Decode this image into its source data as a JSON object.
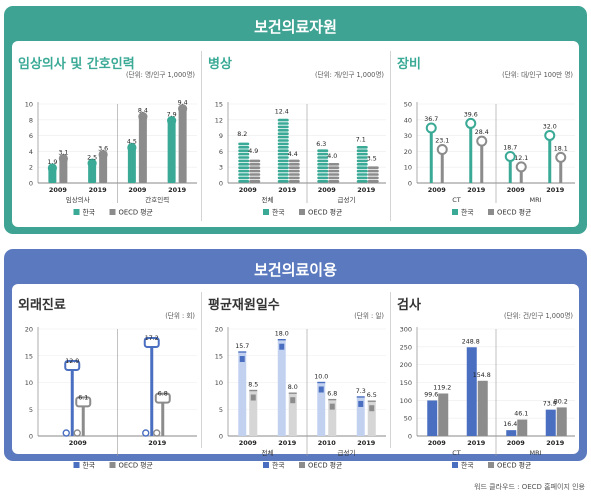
{
  "colors": {
    "korea": "#3aaa96",
    "korea_light": "#a8ddd3",
    "korea_blue": "#4a6fc0",
    "korea_blue_light": "#c3d1f0",
    "oecd": "#8c8c8c",
    "oecd_light": "#d6d6d6",
    "green_frame": "#3ea393",
    "blue_frame": "#5b79be"
  },
  "sections": {
    "resources": {
      "title": "보건의료자원"
    },
    "utilization": {
      "title": "보건의료이용"
    }
  },
  "footer": {
    "credit": "워드 클라우드 : OECD 홈페이지 인용"
  },
  "chart_data": [
    {
      "id": "doctors",
      "type": "bar",
      "title": "임상의사 및 간호인력",
      "unit": "(단위: 명/인구 1,000명)",
      "yticks": [
        "0",
        "2",
        "4",
        "6",
        "8",
        "10"
      ],
      "ylim": [
        0,
        10
      ],
      "groups": [
        {
          "label": "임상의사",
          "years": [
            "2009",
            "2019"
          ]
        },
        {
          "label": "간호인력",
          "years": [
            "2009",
            "2019"
          ]
        }
      ],
      "series": [
        {
          "name": "한국",
          "values": [
            1.9,
            2.5,
            4.5,
            7.9
          ]
        },
        {
          "name": "OECD 평균",
          "values": [
            3.1,
            3.6,
            8.4,
            9.4
          ]
        }
      ],
      "value_labels": [
        [
          "1.9",
          "2.5",
          "4.5",
          "7.9"
        ],
        [
          "3.1",
          "3.6",
          "8.4",
          "9.4"
        ]
      ],
      "legend": [
        "한국",
        "OECD 평균"
      ]
    },
    {
      "id": "beds",
      "type": "bar",
      "title": "병상",
      "unit": "(단위: 개/인구 1,000명)",
      "yticks": [
        "0",
        "3",
        "6",
        "9",
        "12",
        "15"
      ],
      "ylim": [
        0,
        15
      ],
      "groups": [
        {
          "label": "전체",
          "years": [
            "2009",
            "2019"
          ]
        },
        {
          "label": "급성기",
          "years": [
            "2009",
            "2019"
          ]
        }
      ],
      "series": [
        {
          "name": "한국",
          "values": [
            8.2,
            12.4,
            6.3,
            7.1
          ]
        },
        {
          "name": "OECD 평균",
          "values": [
            4.9,
            4.4,
            4.0,
            3.5
          ]
        }
      ],
      "value_labels": [
        [
          "8.2",
          "12.4",
          "6.3",
          "7.1"
        ],
        [
          "4.9",
          "4.4",
          "4.0",
          "3.5"
        ]
      ],
      "legend": [
        "한국",
        "OECD 평균"
      ]
    },
    {
      "id": "equipment",
      "type": "bar",
      "title": "장비",
      "unit": "(단위: 대/인구 100만 명)",
      "yticks": [
        "0",
        "10",
        "20",
        "30",
        "40",
        "50"
      ],
      "ylim": [
        0,
        50
      ],
      "groups": [
        {
          "label": "CT",
          "years": [
            "2009",
            "2019"
          ]
        },
        {
          "label": "MRI",
          "years": [
            "2009",
            "2019"
          ]
        }
      ],
      "series": [
        {
          "name": "한국",
          "values": [
            36.7,
            39.6,
            18.7,
            32.0
          ]
        },
        {
          "name": "OECD 평균",
          "values": [
            23.1,
            28.4,
            12.1,
            18.1
          ]
        }
      ],
      "value_labels": [
        [
          "36.7",
          "39.6",
          "18.7",
          "32.0"
        ],
        [
          "23.1",
          "28.4",
          "12.1",
          "18.1"
        ]
      ],
      "legend": [
        "한국",
        "OECD 평균"
      ]
    },
    {
      "id": "outpatient",
      "type": "bar",
      "title": "외래진료",
      "unit": "(단위 : 회)",
      "yticks": [
        "0",
        "5",
        "10",
        "15",
        "20"
      ],
      "ylim": [
        0,
        20
      ],
      "groups": [
        {
          "label": "",
          "years": [
            "2009"
          ]
        },
        {
          "label": "",
          "years": [
            "2019"
          ]
        }
      ],
      "series": [
        {
          "name": "한국",
          "values": [
            12.9,
            17.2
          ]
        },
        {
          "name": "OECD 평균",
          "values": [
            6.1,
            6.8
          ]
        }
      ],
      "value_labels": [
        [
          "12.9",
          "17.2"
        ],
        [
          "6.1",
          "6.8"
        ]
      ],
      "legend": [
        "한국",
        "OECD 평균"
      ]
    },
    {
      "id": "stay",
      "type": "bar",
      "title": "평균재원일수",
      "unit": "(단위 : 일)",
      "yticks": [
        "0",
        "5",
        "10",
        "15",
        "20"
      ],
      "ylim": [
        0,
        20
      ],
      "groups": [
        {
          "label": "전체",
          "years": [
            "2009",
            "2019"
          ]
        },
        {
          "label": "급성기",
          "years": [
            "2010",
            "2019"
          ]
        }
      ],
      "series": [
        {
          "name": "한국",
          "values": [
            15.7,
            18.0,
            10.0,
            7.3
          ]
        },
        {
          "name": "OECD 평균",
          "values": [
            8.5,
            8.0,
            6.8,
            6.5
          ]
        }
      ],
      "value_labels": [
        [
          "15.7",
          "18.0",
          "10.0",
          "7.3"
        ],
        [
          "8.5",
          "8.0",
          "6.8",
          "6.5"
        ]
      ],
      "legend": [
        "한국",
        "OECD 평균"
      ]
    },
    {
      "id": "exams",
      "type": "bar",
      "title": "검사",
      "unit": "(단위: 건/인구 1,000명)",
      "yticks": [
        "0",
        "50",
        "100",
        "150",
        "200",
        "250",
        "300"
      ],
      "ylim": [
        0,
        300
      ],
      "groups": [
        {
          "label": "CT",
          "years": [
            "2009",
            "2019"
          ]
        },
        {
          "label": "MRI",
          "years": [
            "2009",
            "2019"
          ]
        }
      ],
      "series": [
        {
          "name": "한국",
          "values": [
            99.6,
            248.8,
            16.4,
            73.9
          ]
        },
        {
          "name": "OECD 평균",
          "values": [
            119.2,
            154.8,
            46.1,
            80.2
          ]
        }
      ],
      "value_labels": [
        [
          "99.6",
          "248.8",
          "16.4",
          "73.9"
        ],
        [
          "119.2",
          "154.8",
          "46.1",
          "80.2"
        ]
      ],
      "legend": [
        "한국",
        "OECD 평균"
      ]
    }
  ]
}
